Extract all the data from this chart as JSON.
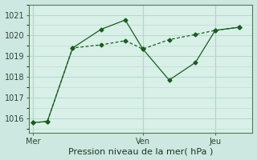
{
  "title": "Pression niveau de la mer( hPa )",
  "background_color": "#cce8e0",
  "plot_bg_color": "#d8f0e8",
  "grid_color": "#b8d8cc",
  "vline_color": "#9999aa",
  "line_color": "#1a5c20",
  "ylim": [
    1015.3,
    1021.5
  ],
  "yticks": [
    1016,
    1017,
    1018,
    1019,
    1020,
    1021
  ],
  "xtick_labels": [
    "Mer",
    "Ven",
    "Jeu"
  ],
  "xtick_positions": [
    0.0,
    0.5,
    0.83
  ],
  "vline_positions": [
    0.0,
    0.5,
    0.83
  ],
  "series1_x": [
    0.0,
    0.065,
    0.18,
    0.31,
    0.42,
    0.5,
    0.62,
    0.74,
    0.83,
    0.94
  ],
  "series1_y": [
    1015.8,
    1015.85,
    1019.4,
    1020.3,
    1020.75,
    1019.35,
    1017.85,
    1018.7,
    1020.25,
    1020.4
  ],
  "series2_x": [
    0.0,
    0.065,
    0.18,
    0.31,
    0.42,
    0.5,
    0.62,
    0.74,
    0.83,
    0.94
  ],
  "series2_y": [
    1015.8,
    1015.85,
    1019.4,
    1019.55,
    1019.75,
    1019.35,
    1019.8,
    1020.05,
    1020.25,
    1020.4
  ],
  "xlabel_fontsize": 8,
  "ytick_fontsize": 7,
  "xtick_fontsize": 7
}
